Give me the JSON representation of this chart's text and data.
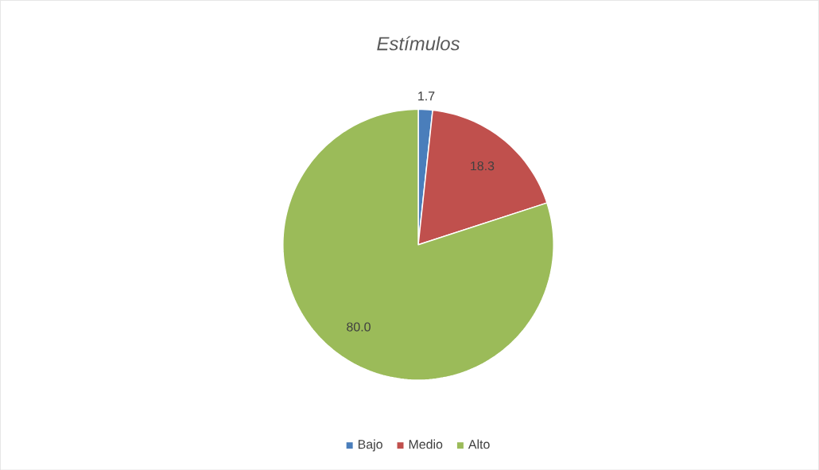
{
  "chart_data": {
    "type": "pie",
    "title": "Estímulos",
    "categories": [
      "Bajo",
      "Medio",
      "Alto"
    ],
    "values": [
      1.7,
      18.3,
      80.0
    ],
    "value_labels": [
      "1.7",
      "18.3",
      "80.0"
    ],
    "colors": [
      "#4a7ebb",
      "#c0504d",
      "#9bbb59"
    ],
    "legend": "bottom"
  }
}
